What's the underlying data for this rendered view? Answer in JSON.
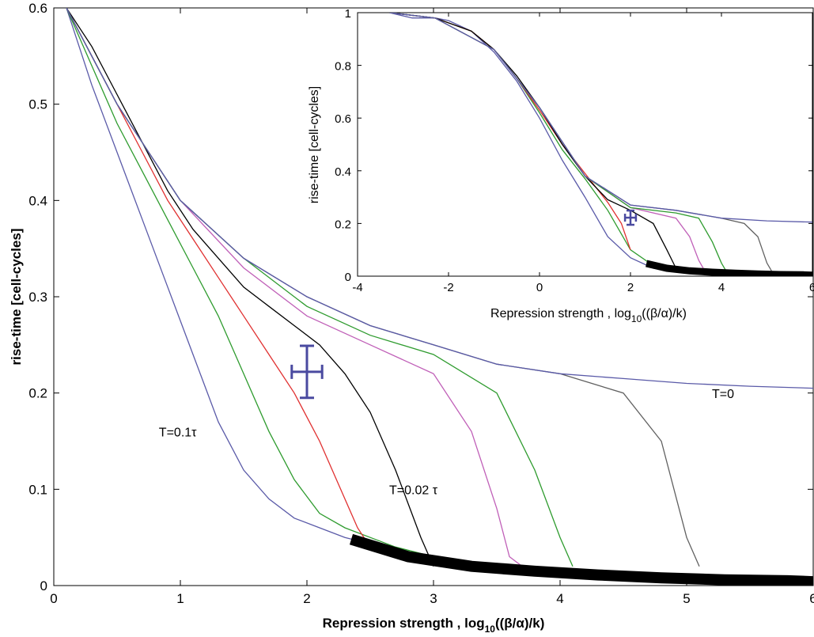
{
  "chart_data": [
    {
      "type": "line",
      "xlim": [
        0,
        6
      ],
      "ylim": [
        0,
        0.6
      ],
      "xticks": [
        "0",
        "1",
        "2",
        "3",
        "4",
        "5",
        "6"
      ],
      "yticks": [
        "0",
        "0.1",
        "0.2",
        "0.3",
        "0.4",
        "0.5",
        "0.6"
      ],
      "xlabel": {
        "main": "Repression strength ,  log",
        "sub": "10",
        "tail": "((β/α)/k)"
      },
      "ylabel": "rise-time  [cell-cycles]",
      "annotations": [
        {
          "text": "T=0.1τ",
          "x": 0.83,
          "y": 0.155
        },
        {
          "text": "T=0.02 τ",
          "x": 2.65,
          "y": 0.095
        },
        {
          "text": "T=0",
          "x": 5.2,
          "y": 0.195
        }
      ],
      "series": [
        {
          "color": "#5a5aa8",
          "x": [
            0.1,
            0.3,
            0.5,
            0.7,
            0.9,
            1.1,
            1.3,
            1.5,
            1.7,
            1.9,
            2.1,
            2.3,
            2.6,
            3.0,
            3.5,
            4.0,
            4.5,
            5.0,
            5.5,
            6.0
          ],
          "y": [
            0.6,
            0.52,
            0.45,
            0.38,
            0.31,
            0.24,
            0.17,
            0.12,
            0.09,
            0.07,
            0.06,
            0.05,
            0.04,
            0.03,
            0.02,
            0.015,
            0.01,
            0.007,
            0.005,
            0.003
          ]
        },
        {
          "color": "#2e9b2e",
          "x": [
            0.1,
            0.3,
            0.5,
            0.7,
            0.9,
            1.1,
            1.3,
            1.5,
            1.7,
            1.9,
            2.1,
            2.3,
            2.5,
            2.7,
            3.0,
            3.5,
            4.0
          ],
          "y": [
            0.6,
            0.54,
            0.48,
            0.43,
            0.38,
            0.33,
            0.28,
            0.22,
            0.16,
            0.11,
            0.075,
            0.06,
            0.05,
            0.04,
            0.03,
            0.02,
            0.015
          ]
        },
        {
          "color": "#e03030",
          "x": [
            0.1,
            0.3,
            0.5,
            0.7,
            0.9,
            1.1,
            1.3,
            1.5,
            1.7,
            1.9,
            2.1,
            2.3,
            2.4,
            2.5,
            2.7
          ],
          "y": [
            0.6,
            0.55,
            0.5,
            0.45,
            0.4,
            0.36,
            0.32,
            0.28,
            0.24,
            0.2,
            0.15,
            0.09,
            0.06,
            0.04,
            0.03
          ]
        },
        {
          "color": "#000000",
          "x": [
            0.1,
            0.3,
            0.5,
            0.7,
            0.9,
            1.1,
            1.3,
            1.5,
            1.7,
            1.9,
            2.1,
            2.3,
            2.5,
            2.7,
            2.9,
            3.0
          ],
          "y": [
            0.6,
            0.56,
            0.51,
            0.46,
            0.41,
            0.37,
            0.34,
            0.31,
            0.29,
            0.27,
            0.25,
            0.22,
            0.18,
            0.12,
            0.05,
            0.02
          ]
        },
        {
          "color": "#c060b8",
          "x": [
            0.1,
            0.5,
            1.0,
            1.5,
            2.0,
            2.5,
            3.0,
            3.3,
            3.5,
            3.6,
            3.7
          ],
          "y": [
            0.6,
            0.5,
            0.4,
            0.33,
            0.28,
            0.25,
            0.22,
            0.16,
            0.08,
            0.03,
            0.02
          ]
        },
        {
          "color": "#2e9b2e",
          "x": [
            0.1,
            0.5,
            1.0,
            1.5,
            2.0,
            2.5,
            3.0,
            3.5,
            3.8,
            4.0,
            4.1
          ],
          "y": [
            0.6,
            0.5,
            0.4,
            0.34,
            0.29,
            0.26,
            0.24,
            0.2,
            0.12,
            0.05,
            0.02
          ]
        },
        {
          "color": "#606060",
          "x": [
            0.1,
            0.5,
            1.0,
            1.5,
            2.0,
            2.5,
            3.0,
            3.5,
            4.0,
            4.5,
            4.8,
            5.0,
            5.1
          ],
          "y": [
            0.6,
            0.5,
            0.4,
            0.34,
            0.3,
            0.27,
            0.25,
            0.23,
            0.22,
            0.2,
            0.15,
            0.05,
            0.02
          ]
        },
        {
          "color": "#5a5aa8",
          "x": [
            0.1,
            0.5,
            1.0,
            1.5,
            2.0,
            2.5,
            3.0,
            3.5,
            4.0,
            4.5,
            5.0,
            5.5,
            6.0
          ],
          "y": [
            0.6,
            0.5,
            0.4,
            0.34,
            0.3,
            0.27,
            0.25,
            0.23,
            0.22,
            0.215,
            0.21,
            0.207,
            0.205
          ]
        }
      ],
      "limit_curve": {
        "color": "#000000",
        "x": [
          2.35,
          2.8,
          3.3,
          3.8,
          4.3,
          4.8,
          5.3,
          5.8,
          6.0
        ],
        "y": [
          0.048,
          0.03,
          0.02,
          0.015,
          0.011,
          0.008,
          0.006,
          0.005,
          0.004
        ]
      },
      "error_bar": {
        "color": "#4a4aa0",
        "x": 2.0,
        "y": 0.222,
        "xerr": 0.12,
        "yerr": 0.027
      }
    },
    {
      "type": "line",
      "xlim": [
        -4,
        6
      ],
      "ylim": [
        0,
        1
      ],
      "xticks": [
        "-4",
        "-2",
        "0",
        "2",
        "4",
        "6"
      ],
      "yticks": [
        "0",
        "0.2",
        "0.4",
        "0.6",
        "0.8",
        "1"
      ],
      "xlabel": {
        "main": "Repression strength ,  log",
        "sub": "10",
        "tail": "((β/α)/k)"
      },
      "ylabel": "rise-time  [cell-cycles]",
      "series": [
        {
          "color": "#5a5aa8",
          "x": [
            -3.3,
            -2.8,
            -2.3,
            -2.0,
            -1.5,
            -1.0,
            -0.5,
            0.0,
            0.5,
            1.0,
            1.5,
            2.0,
            2.5,
            3.0
          ],
          "y": [
            1.0,
            0.98,
            0.98,
            0.97,
            0.93,
            0.85,
            0.74,
            0.6,
            0.44,
            0.3,
            0.15,
            0.07,
            0.03,
            0.02
          ]
        },
        {
          "color": "#2e9b2e",
          "x": [
            -3.3,
            -2.3,
            -1.5,
            -1.0,
            -0.5,
            0.0,
            0.5,
            1.0,
            1.5,
            2.0,
            2.5,
            3.0
          ],
          "y": [
            1.0,
            0.98,
            0.93,
            0.86,
            0.75,
            0.62,
            0.48,
            0.37,
            0.25,
            0.1,
            0.04,
            0.02
          ]
        },
        {
          "color": "#e03030",
          "x": [
            -3.3,
            -2.3,
            -1.5,
            -1.0,
            -0.5,
            0.0,
            0.5,
            1.0,
            1.5,
            1.8,
            2.0
          ],
          "y": [
            1.0,
            0.98,
            0.93,
            0.86,
            0.75,
            0.63,
            0.5,
            0.39,
            0.28,
            0.2,
            0.1
          ]
        },
        {
          "color": "#000000",
          "x": [
            -3.3,
            -2.3,
            -1.5,
            -1.0,
            -0.5,
            0.0,
            0.5,
            1.0,
            1.5,
            2.0,
            2.5,
            2.8,
            3.0
          ],
          "y": [
            1.0,
            0.98,
            0.93,
            0.86,
            0.76,
            0.64,
            0.5,
            0.38,
            0.29,
            0.25,
            0.2,
            0.1,
            0.03
          ]
        },
        {
          "color": "#c060b8",
          "x": [
            -3.3,
            -2.3,
            -1.0,
            0.0,
            1.0,
            2.0,
            3.0,
            3.3,
            3.5,
            3.6
          ],
          "y": [
            1.0,
            0.98,
            0.86,
            0.64,
            0.38,
            0.26,
            0.22,
            0.15,
            0.06,
            0.03
          ]
        },
        {
          "color": "#2e9b2e",
          "x": [
            -3.3,
            -2.3,
            -1.0,
            0.0,
            1.0,
            2.0,
            3.0,
            3.5,
            3.8,
            4.0,
            4.1
          ],
          "y": [
            1.0,
            0.98,
            0.86,
            0.64,
            0.38,
            0.26,
            0.24,
            0.22,
            0.13,
            0.05,
            0.02
          ]
        },
        {
          "color": "#606060",
          "x": [
            -3.3,
            -2.3,
            -1.0,
            0.0,
            1.0,
            2.0,
            3.0,
            4.0,
            4.5,
            4.8,
            5.0,
            5.1
          ],
          "y": [
            1.0,
            0.98,
            0.86,
            0.64,
            0.38,
            0.27,
            0.25,
            0.22,
            0.2,
            0.15,
            0.05,
            0.02
          ]
        },
        {
          "color": "#5a5aa8",
          "x": [
            -3.3,
            -2.3,
            -1.0,
            0.0,
            1.0,
            2.0,
            3.0,
            4.0,
            5.0,
            6.0
          ],
          "y": [
            1.0,
            0.98,
            0.86,
            0.64,
            0.38,
            0.27,
            0.25,
            0.22,
            0.21,
            0.205
          ]
        }
      ],
      "limit_curve": {
        "color": "#000000",
        "x": [
          2.35,
          2.8,
          3.3,
          3.8,
          4.3,
          4.8,
          5.3,
          5.8,
          6.0
        ],
        "y": [
          0.048,
          0.03,
          0.02,
          0.015,
          0.011,
          0.008,
          0.006,
          0.005,
          0.004
        ]
      },
      "error_bar": {
        "color": "#4a4aa0",
        "x": 2.0,
        "y": 0.222,
        "xerr": 0.12,
        "yerr": 0.027
      }
    }
  ]
}
